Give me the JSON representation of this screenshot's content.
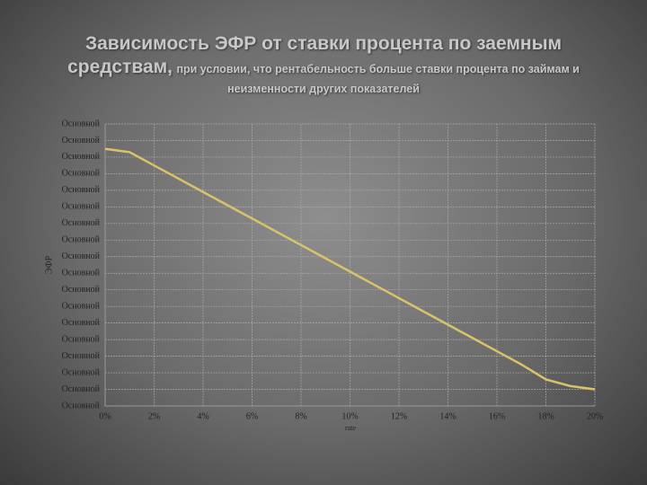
{
  "chart_data": {
    "type": "line",
    "title": "Зависимость ЭФР от ставки процента по заемным средствам,",
    "subtitle": "при условии, что рентабельность больше ставки процента по займам и неизменности других показателей",
    "y_label": "ЭФР",
    "x_label": "rate",
    "x": [
      0,
      1,
      2,
      3,
      4,
      5,
      6,
      7,
      8,
      9,
      10,
      11,
      12,
      13,
      14,
      15,
      16,
      17,
      18,
      19,
      20
    ],
    "series": [
      {
        "name": "ЭФР",
        "color": "#d9c36a",
        "values": [
          15.5,
          15.3,
          14.5,
          13.7,
          12.9,
          12.1,
          11.3,
          10.5,
          9.7,
          8.9,
          8.1,
          7.3,
          6.5,
          5.7,
          4.9,
          4.1,
          3.3,
          2.5,
          1.6,
          1.2,
          1.0
        ]
      }
    ],
    "xlim": [
      0,
      20
    ],
    "xticks": [
      {
        "value": 0,
        "label": "0%"
      },
      {
        "value": 2,
        "label": "2%"
      },
      {
        "value": 4,
        "label": "4%"
      },
      {
        "value": 6,
        "label": "6%"
      },
      {
        "value": 8,
        "label": "8%"
      },
      {
        "value": 10,
        "label": "10%"
      },
      {
        "value": 12,
        "label": "12%"
      },
      {
        "value": 14,
        "label": "14%"
      },
      {
        "value": 16,
        "label": "16%"
      },
      {
        "value": 18,
        "label": "18%"
      },
      {
        "value": 20,
        "label": "20%"
      }
    ],
    "ylim": [
      0,
      17
    ],
    "yticks": [
      {
        "value": 0,
        "label": "Основной"
      },
      {
        "value": 1,
        "label": "Основной"
      },
      {
        "value": 2,
        "label": "Основной"
      },
      {
        "value": 3,
        "label": "Основной"
      },
      {
        "value": 4,
        "label": "Основной"
      },
      {
        "value": 5,
        "label": "Основной"
      },
      {
        "value": 6,
        "label": "Основной"
      },
      {
        "value": 7,
        "label": "Основной"
      },
      {
        "value": 8,
        "label": "Основной"
      },
      {
        "value": 9,
        "label": "Основной"
      },
      {
        "value": 10,
        "label": "Основной"
      },
      {
        "value": 11,
        "label": "Основной"
      },
      {
        "value": 12,
        "label": "Основной"
      },
      {
        "value": 13,
        "label": "Основной"
      },
      {
        "value": 14,
        "label": "Основной"
      },
      {
        "value": 15,
        "label": "Основной"
      },
      {
        "value": 16,
        "label": "Основной"
      },
      {
        "value": 17,
        "label": "Основной"
      }
    ],
    "grid": true
  }
}
